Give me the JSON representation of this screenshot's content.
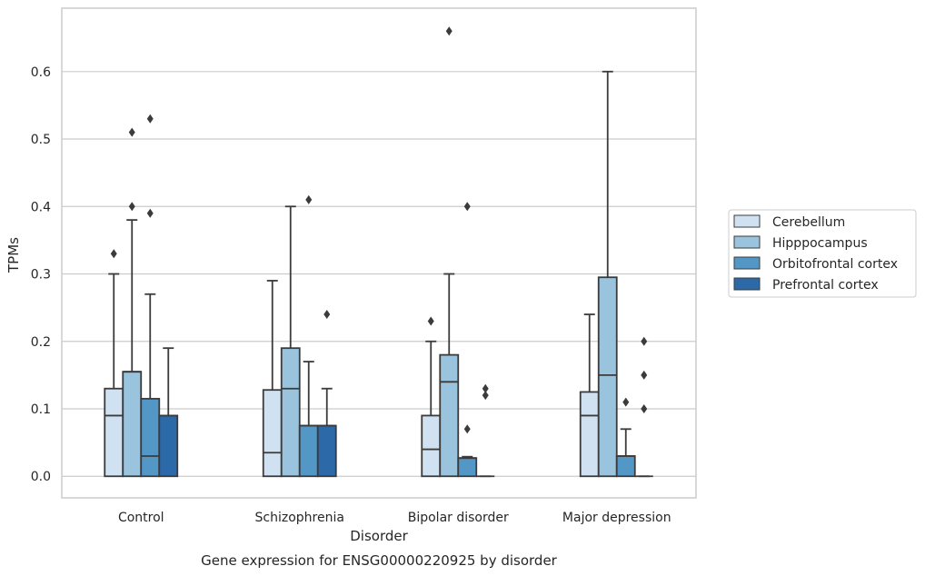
{
  "chart_data": {
    "type": "box",
    "xlabel": "Disorder",
    "ylabel": "TPMs",
    "caption": "Gene expression for ENSG00000220925 by disorder",
    "ylim": [
      -0.032,
      0.694
    ],
    "yticks": [
      "0.0",
      "0.1",
      "0.2",
      "0.3",
      "0.4",
      "0.5",
      "0.6"
    ],
    "grid": true,
    "legend_position": "right",
    "categories": [
      "Control",
      "Schizophrenia",
      "Bipolar disorder",
      "Major depression"
    ],
    "series": [
      {
        "name": "Cerebellum",
        "color": "#d0e1f2",
        "boxes": [
          {
            "q1": 0.0,
            "median": 0.09,
            "q3": 0.13,
            "whisker_low": 0.0,
            "whisker_high": 0.3,
            "outliers": [
              0.33
            ]
          },
          {
            "q1": 0.0,
            "median": 0.035,
            "q3": 0.128,
            "whisker_low": 0.0,
            "whisker_high": 0.29,
            "outliers": []
          },
          {
            "q1": 0.0,
            "median": 0.04,
            "q3": 0.09,
            "whisker_low": 0.0,
            "whisker_high": 0.2,
            "outliers": [
              0.23
            ]
          },
          {
            "q1": 0.0,
            "median": 0.09,
            "q3": 0.125,
            "whisker_low": 0.0,
            "whisker_high": 0.24,
            "outliers": []
          }
        ]
      },
      {
        "name": "Hipppocampus",
        "color": "#9ac3dd",
        "boxes": [
          {
            "q1": 0.0,
            "median": 0.155,
            "q3": 0.155,
            "whisker_low": 0.0,
            "whisker_high": 0.38,
            "outliers": [
              0.4,
              0.51
            ]
          },
          {
            "q1": 0.0,
            "median": 0.13,
            "q3": 0.19,
            "whisker_low": 0.0,
            "whisker_high": 0.4,
            "outliers": []
          },
          {
            "q1": 0.0,
            "median": 0.14,
            "q3": 0.18,
            "whisker_low": 0.0,
            "whisker_high": 0.3,
            "outliers": [
              0.66
            ]
          },
          {
            "q1": 0.0,
            "median": 0.15,
            "q3": 0.295,
            "whisker_low": 0.0,
            "whisker_high": 0.6,
            "outliers": []
          }
        ]
      },
      {
        "name": "Orbitofrontal cortex",
        "color": "#5397c7",
        "boxes": [
          {
            "q1": 0.0,
            "median": 0.03,
            "q3": 0.115,
            "whisker_low": 0.0,
            "whisker_high": 0.27,
            "outliers": [
              0.39,
              0.53
            ]
          },
          {
            "q1": 0.0,
            "median": 0.075,
            "q3": 0.075,
            "whisker_low": 0.0,
            "whisker_high": 0.17,
            "outliers": [
              0.41
            ]
          },
          {
            "q1": 0.0,
            "median": 0.027,
            "q3": 0.027,
            "whisker_low": 0.0,
            "whisker_high": 0.029,
            "outliers": [
              0.07,
              0.4
            ]
          },
          {
            "q1": 0.0,
            "median": 0.03,
            "q3": 0.03,
            "whisker_low": 0.0,
            "whisker_high": 0.07,
            "outliers": [
              0.11
            ]
          }
        ]
      },
      {
        "name": "Prefrontal cortex",
        "color": "#2b69a8",
        "boxes": [
          {
            "q1": 0.0,
            "median": 0.09,
            "q3": 0.09,
            "whisker_low": 0.0,
            "whisker_high": 0.19,
            "outliers": []
          },
          {
            "q1": 0.0,
            "median": 0.075,
            "q3": 0.075,
            "whisker_low": 0.0,
            "whisker_high": 0.13,
            "outliers": [
              0.24
            ]
          },
          {
            "q1": 0.0,
            "median": 0.0,
            "q3": 0.0,
            "whisker_low": 0.0,
            "whisker_high": 0.0,
            "outliers": [
              0.12,
              0.13
            ]
          },
          {
            "q1": 0.0,
            "median": 0.0,
            "q3": 0.0,
            "whisker_low": 0.0,
            "whisker_high": 0.0,
            "outliers": [
              0.1,
              0.15,
              0.2
            ]
          }
        ]
      }
    ]
  }
}
